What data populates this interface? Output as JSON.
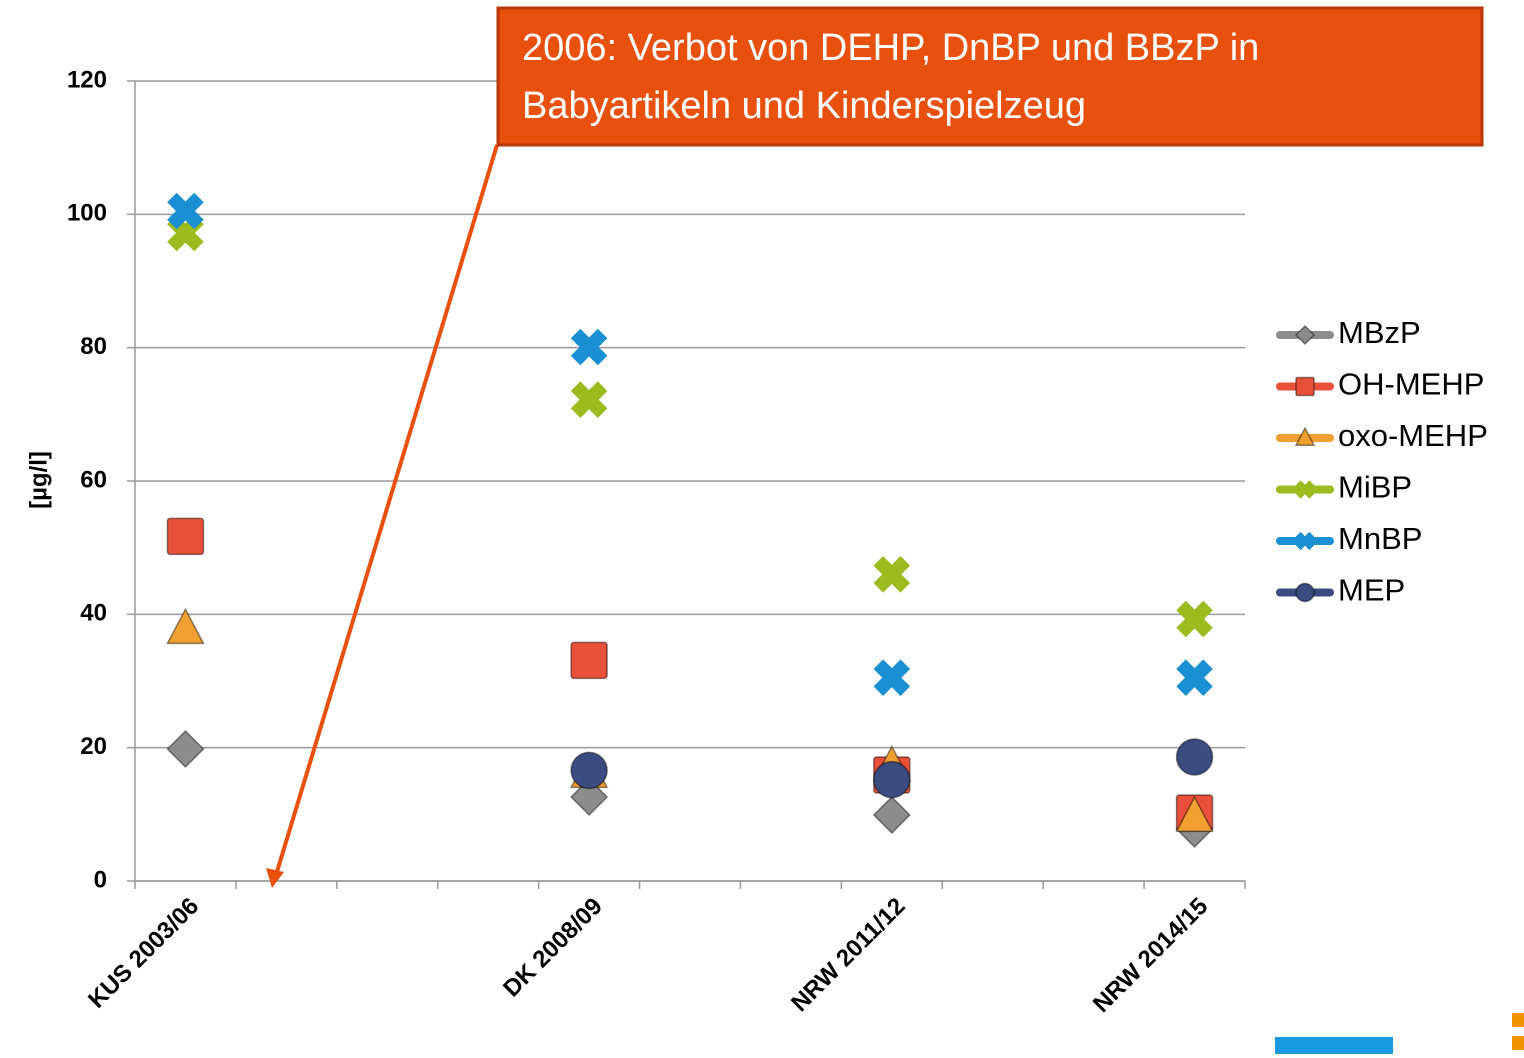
{
  "chart_data": {
    "type": "scatter",
    "annotation": [
      "2006: Verbot von DEHP, DnBP und BBzP in",
      "Babyartikeln und Kinderspielzeug"
    ],
    "y_label": "[µg/l]",
    "categories": [
      "KUS 2003/06",
      null,
      null,
      null,
      "DK 2008/09",
      null,
      null,
      "NRW 2011/12",
      null,
      null,
      "NRW 2014/15"
    ],
    "ylim": [
      0,
      120
    ],
    "yticks": [
      0,
      20,
      40,
      60,
      80,
      100,
      120
    ],
    "grid": true,
    "legend": "right",
    "series": [
      {
        "name": "MBzP",
        "color": "#8c8c8c",
        "marker": "diamond",
        "values": [
          19.8,
          null,
          null,
          null,
          12.6,
          null,
          null,
          9.9,
          null,
          null,
          7.8
        ]
      },
      {
        "name": "OH-MEHP",
        "color": "#e8503a",
        "marker": "square",
        "values": [
          51.7,
          null,
          null,
          null,
          33.1,
          null,
          null,
          15.9,
          null,
          null,
          10.2
        ]
      },
      {
        "name": "oxo-MEHP",
        "color": "#f0a030",
        "marker": "triangle",
        "values": [
          37.8,
          null,
          null,
          null,
          16.2,
          null,
          null,
          17.2,
          null,
          null,
          9.6
        ]
      },
      {
        "name": "MiBP",
        "color": "#9bbb1e",
        "marker": "cross",
        "values": [
          97.2,
          null,
          null,
          null,
          72.2,
          null,
          null,
          46.0,
          null,
          null,
          39.3
        ]
      },
      {
        "name": "MnBP",
        "color": "#1a90d2",
        "marker": "cross",
        "values": [
          100.5,
          null,
          null,
          null,
          80.1,
          null,
          null,
          30.5,
          null,
          null,
          30.5
        ]
      },
      {
        "name": "MEP",
        "color": "#3b4c80",
        "marker": "circle",
        "values": [
          null,
          null,
          null,
          null,
          16.6,
          null,
          null,
          15.2,
          null,
          null,
          18.6
        ]
      }
    ]
  }
}
